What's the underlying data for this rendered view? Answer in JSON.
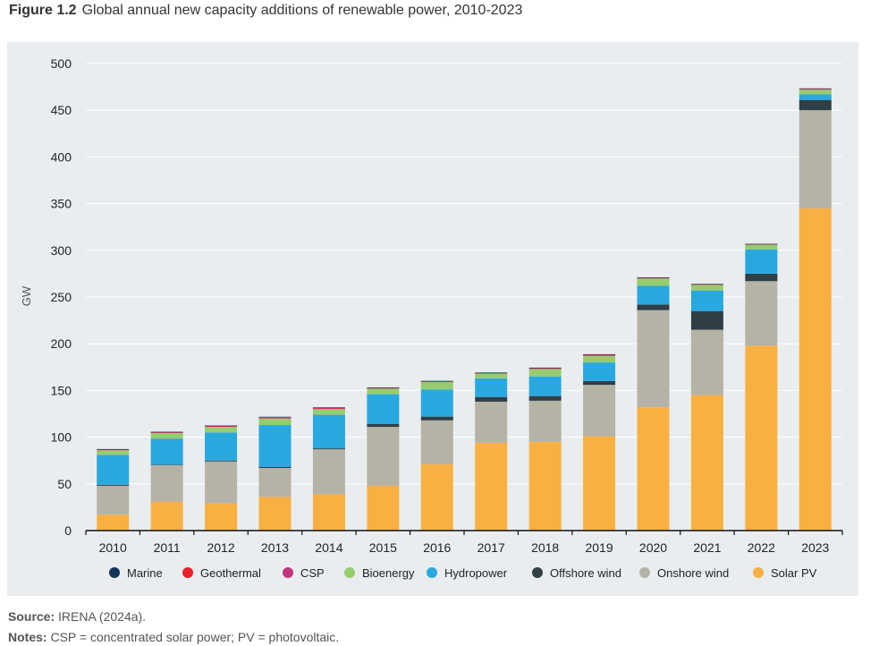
{
  "figure": {
    "number": "Figure 1.2",
    "title": "Global annual new capacity additions of renewable power, 2010-2023"
  },
  "source": {
    "label": "Source:",
    "text": "IRENA (2024a)."
  },
  "notes": {
    "label": "Notes:",
    "text": "CSP = concentrated solar power; PV = photovoltaic."
  },
  "chart_data": {
    "type": "bar",
    "stacked": true,
    "title": "Global annual new capacity additions of renewable power, 2010-2023",
    "ylabel": "GW",
    "xlabel": "",
    "ylim": [
      0,
      500
    ],
    "yticks": [
      0,
      50,
      100,
      150,
      200,
      250,
      300,
      350,
      400,
      450,
      500
    ],
    "grid": true,
    "legend_position": "bottom",
    "categories": [
      "2010",
      "2011",
      "2012",
      "2013",
      "2014",
      "2015",
      "2016",
      "2017",
      "2018",
      "2019",
      "2020",
      "2021",
      "2022",
      "2023"
    ],
    "series": [
      {
        "name": "Solar PV",
        "color": "#f9b043",
        "values": [
          17,
          31,
          29,
          36,
          39,
          48,
          71,
          94,
          95,
          101,
          132,
          145,
          198,
          345
        ]
      },
      {
        "name": "Onshore wind",
        "color": "#b5b2a6",
        "values": [
          31,
          39,
          45,
          31,
          48,
          63,
          47,
          44,
          44,
          55,
          104,
          70,
          69,
          105
        ]
      },
      {
        "name": "Offshore wind",
        "color": "#2e3f45",
        "values": [
          1,
          0.5,
          1,
          1,
          1,
          3,
          4,
          5,
          5,
          4,
          6,
          20,
          8,
          11
        ]
      },
      {
        "name": "Hydropower",
        "color": "#29a8e0",
        "values": [
          32,
          28,
          30,
          45,
          36,
          32,
          29,
          20,
          21,
          20,
          20,
          22,
          26,
          6
        ]
      },
      {
        "name": "Bioenergy",
        "color": "#95cc6e",
        "values": [
          5,
          6,
          6,
          7,
          6,
          6,
          8,
          5,
          8,
          7,
          8,
          6,
          5,
          5
        ]
      },
      {
        "name": "CSP",
        "color": "#c0357e",
        "values": [
          0.3,
          0.4,
          0.6,
          0.9,
          0.8,
          0.3,
          0.1,
          0.1,
          0.4,
          0.5,
          0.1,
          0.1,
          0.2,
          0.5
        ]
      },
      {
        "name": "Geothermal",
        "color": "#e8202a",
        "values": [
          0.4,
          0.3,
          0.3,
          0.4,
          0.6,
          0.3,
          0.6,
          0.6,
          0.5,
          0.7,
          0.4,
          0.4,
          0.2,
          0.3
        ]
      },
      {
        "name": "Marine",
        "color": "#12335a",
        "values": [
          0.1,
          0.1,
          0.3,
          0.1,
          0.1,
          0.1,
          0.1,
          0.1,
          0.1,
          0.1,
          0.1,
          0.1,
          0.1,
          0.1
        ]
      }
    ],
    "legend_order": [
      "Marine",
      "Geothermal",
      "CSP",
      "Bioenergy",
      "Hydropower",
      "Offshore wind",
      "Onshore wind",
      "Solar PV"
    ]
  }
}
